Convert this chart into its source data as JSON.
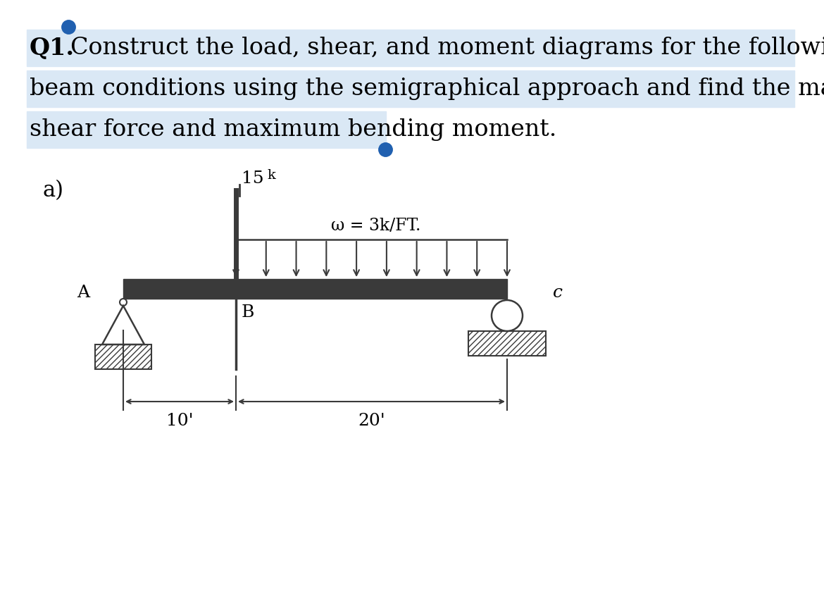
{
  "highlight_color": "#dae8f5",
  "text_color": "#000000",
  "blue_dot_color": "#2060b0",
  "beam_color": "#3a3a3a",
  "background": "#ffffff",
  "label_A": "A",
  "label_B": "B",
  "label_C": "c",
  "point_load_label": "15k",
  "dist_load_label": "ω = 3k/FT.",
  "dim_AB": "10'",
  "dim_BC": "20'",
  "subtitle": "a)"
}
